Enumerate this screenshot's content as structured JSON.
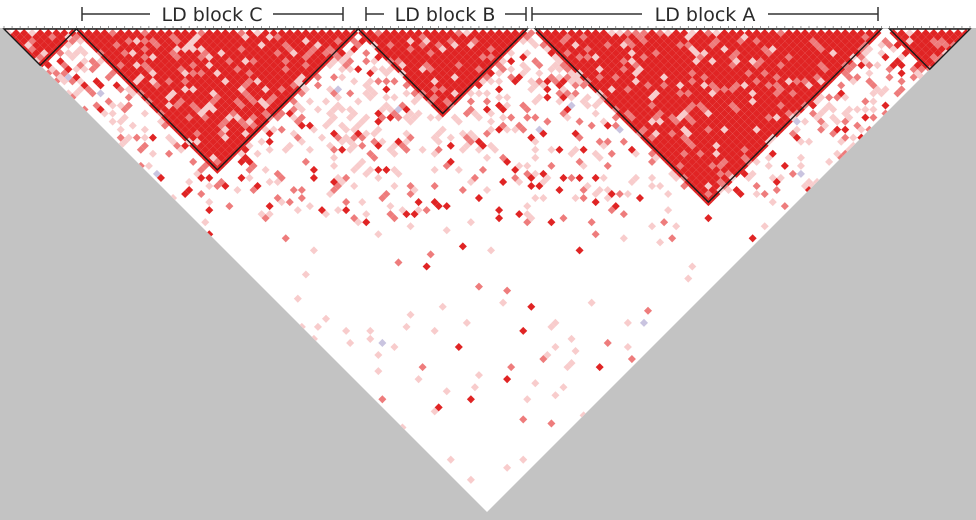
{
  "figure": {
    "type": "LD heatmap (Haploview-style triangle)",
    "colors": {
      "background": "#c3c3c3",
      "panel": "#ffffff",
      "strong_ld": "#e02424",
      "moderate_ld": "#ee7c7c",
      "weak_ld": "#f8cccc",
      "mixed_ld": "#c9c4e0",
      "block_outline": "#1a1a1a",
      "bracket": "#333333"
    }
  },
  "blocks": [
    {
      "id": "block-c",
      "label": "LD block C",
      "strength": "strong"
    },
    {
      "id": "block-b",
      "label": "LD block B",
      "strength": "strong"
    },
    {
      "id": "block-a",
      "label": "LD block A",
      "strength": "strong"
    }
  ]
}
